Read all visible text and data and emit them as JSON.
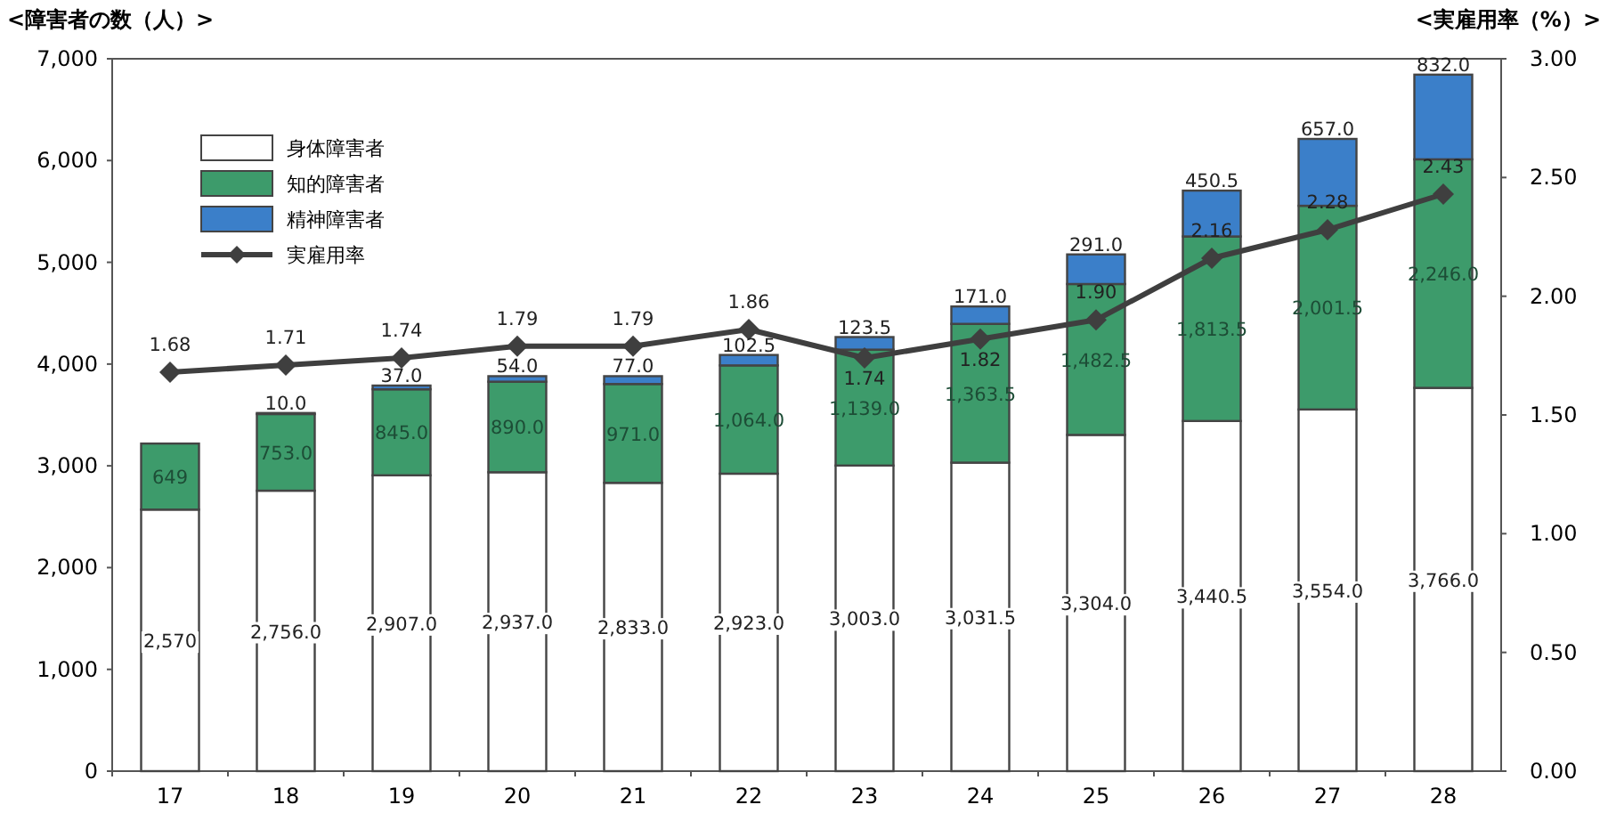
{
  "chart_data": {
    "type": "bar",
    "stacked": true,
    "legend": "top left",
    "grid": false,
    "ylabel": "<障害者の数（人）>",
    "y2label": "<実雇用率（%）>",
    "categories": [
      "17",
      "18",
      "19",
      "20",
      "21",
      "22",
      "23",
      "24",
      "25",
      "26",
      "27",
      "28"
    ],
    "ylim": [
      0,
      7000
    ],
    "yticks": [
      0,
      {
        "value": 1000,
        "label": "1,000"
      },
      {
        "value": 2000,
        "label": "2,000"
      },
      {
        "value": 3000,
        "label": "3,000"
      },
      {
        "value": 4000,
        "label": "4,000"
      },
      {
        "value": 5000,
        "label": "5,000"
      },
      {
        "value": 6000,
        "label": "6,000"
      },
      {
        "value": 7000,
        "label": "7,000"
      }
    ],
    "y2lim": [
      0,
      3
    ],
    "y2ticks": [
      {
        "value": 0,
        "label": "0.00"
      },
      {
        "value": 0.5,
        "label": "0.50"
      },
      {
        "value": 1,
        "label": "1.00"
      },
      {
        "value": 1.5,
        "label": "1.50"
      },
      {
        "value": 2,
        "label": "2.00"
      },
      {
        "value": 2.5,
        "label": "2.50"
      },
      {
        "value": 3,
        "label": "3.00"
      }
    ],
    "series": [
      {
        "name": "身体障害者",
        "color": "#ffffff",
        "values": [
          2570,
          2756,
          2907,
          2937,
          2833,
          2923,
          3003,
          3031.5,
          3304,
          3440.5,
          3554,
          3766
        ],
        "value_labels": [
          "2,570",
          "2,756.0",
          "2,907.0",
          "2,937.0",
          "2,833.0",
          "2,923.0",
          "3,003.0",
          "3,031.5",
          "3,304.0",
          "3,440.5",
          "3,554.0",
          "3,766.0"
        ]
      },
      {
        "name": "知的障害者",
        "color": "#3d9b6b",
        "values": [
          649,
          753,
          845,
          890,
          971,
          1064,
          1139,
          1363.5,
          1482.5,
          1813.5,
          2001.5,
          2246
        ],
        "value_labels": [
          "649",
          "753.0",
          "845.0",
          "890.0",
          "971.0",
          "1,064.0",
          "1,139.0",
          "1,363.5",
          "1,482.5",
          "1,813.5",
          "2,001.5",
          "2,246.0"
        ]
      },
      {
        "name": "精神障害者",
        "color": "#3b7fc9",
        "values": [
          null,
          10,
          37,
          54,
          77,
          102.5,
          123.5,
          171,
          291,
          450.5,
          657,
          832
        ],
        "value_labels": [
          null,
          "10.0",
          "37.0",
          "54.0",
          "77.0",
          "102.5",
          "123.5",
          "171.0",
          "291.0",
          "450.5",
          "657.0",
          "832.0"
        ]
      },
      {
        "name": "実雇用率",
        "type": "line",
        "axis": "y2",
        "marker": "diamond",
        "line_style": "solid",
        "color": "#3f3f3f",
        "values": [
          1.68,
          1.71,
          1.74,
          1.79,
          1.79,
          1.86,
          1.74,
          1.82,
          1.9,
          2.16,
          2.28,
          2.43
        ],
        "value_labels": [
          "1.68",
          "1.71",
          "1.74",
          "1.79",
          "1.79",
          "1.86",
          "1.74",
          "1.82",
          "1.90",
          "2.16",
          "2.28",
          "2.43"
        ]
      }
    ]
  }
}
